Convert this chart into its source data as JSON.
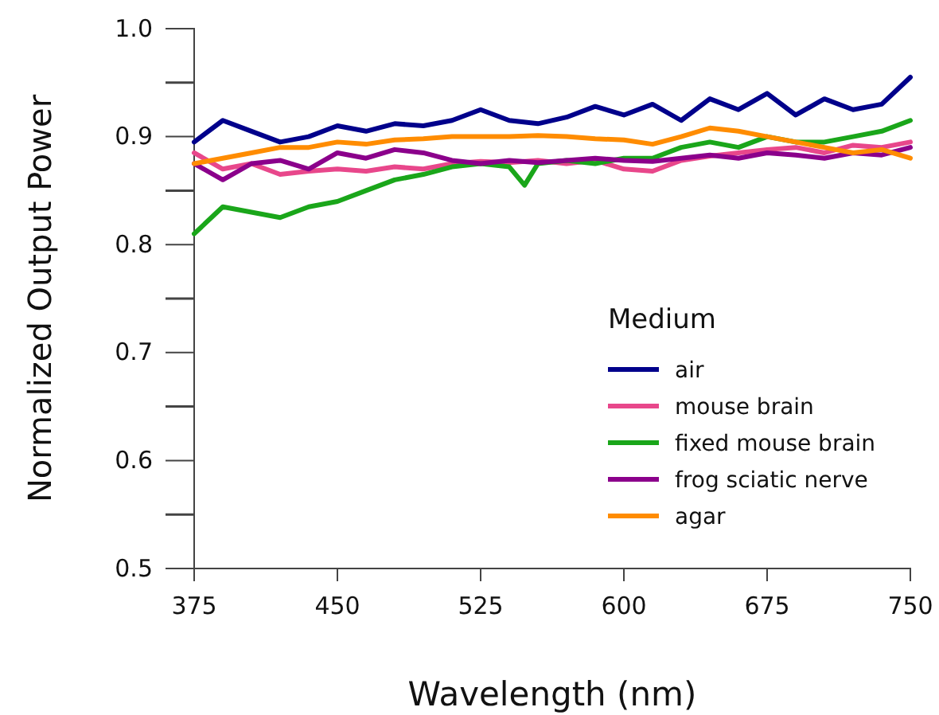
{
  "chart_data": {
    "type": "line",
    "xlabel": "Wavelength (nm)",
    "ylabel": "Normalized Output Power",
    "legend_title": "Medium",
    "legend": "bottom right",
    "grid": false,
    "x": [
      375,
      390,
      405,
      420,
      435,
      450,
      465,
      480,
      495,
      510,
      525,
      540,
      555,
      570,
      585,
      600,
      615,
      630,
      645,
      660,
      675,
      690,
      705,
      720,
      735,
      750
    ],
    "xlim": [
      375,
      750
    ],
    "xticks": [
      375,
      450,
      525,
      600,
      675,
      750
    ],
    "ylim": [
      0.5,
      1.0
    ],
    "yticks": [
      0.5,
      0.6,
      0.7,
      0.8,
      0.9,
      {
        "value": 1.0,
        "label": "1.0"
      }
    ],
    "series": [
      {
        "name": "air",
        "color": "#00008b",
        "values": [
          0.895,
          0.915,
          0.905,
          0.895,
          0.9,
          0.91,
          0.905,
          0.912,
          0.91,
          0.915,
          0.925,
          0.915,
          0.912,
          0.918,
          0.928,
          0.92,
          0.93,
          0.915,
          0.935,
          0.925,
          0.94,
          0.92,
          0.935,
          0.925,
          0.93,
          0.955
        ]
      },
      {
        "name": "mouse brain",
        "color": "#e8478b",
        "values": [
          0.885,
          0.87,
          0.875,
          0.865,
          0.868,
          0.87,
          0.868,
          0.872,
          0.87,
          0.875,
          0.877,
          0.876,
          0.878,
          0.875,
          0.878,
          0.87,
          0.868,
          0.878,
          0.882,
          0.885,
          0.888,
          0.89,
          0.885,
          0.892,
          0.89,
          0.895
        ]
      },
      {
        "name": "fixed mouse brain",
        "color": "#1aa61a",
        "x": [
          375,
          390,
          405,
          420,
          435,
          450,
          465,
          480,
          495,
          510,
          525,
          540,
          548,
          555,
          570,
          585,
          600,
          615,
          630,
          645,
          660,
          675,
          690,
          705,
          720,
          735,
          750
        ],
        "values": [
          0.81,
          0.835,
          0.83,
          0.825,
          0.835,
          0.84,
          0.85,
          0.86,
          0.865,
          0.872,
          0.875,
          0.872,
          0.855,
          0.875,
          0.878,
          0.875,
          0.88,
          0.88,
          0.89,
          0.895,
          0.89,
          0.9,
          0.895,
          0.895,
          0.9,
          0.905,
          0.915
        ]
      },
      {
        "name": "frog sciatic nerve",
        "color": "#8b008b",
        "values": [
          0.875,
          0.86,
          0.875,
          0.878,
          0.87,
          0.885,
          0.88,
          0.888,
          0.885,
          0.878,
          0.875,
          0.878,
          0.876,
          0.878,
          0.88,
          0.878,
          0.877,
          0.88,
          0.883,
          0.88,
          0.885,
          0.883,
          0.88,
          0.885,
          0.883,
          0.89
        ]
      },
      {
        "name": "agar",
        "color": "#ff8c00",
        "values": [
          0.875,
          0.88,
          0.885,
          0.89,
          0.89,
          0.895,
          0.893,
          0.897,
          0.898,
          0.9,
          0.9,
          0.9,
          0.901,
          0.9,
          0.898,
          0.897,
          0.893,
          0.9,
          0.908,
          0.905,
          0.9,
          0.895,
          0.89,
          0.885,
          0.888,
          0.88
        ]
      }
    ]
  }
}
